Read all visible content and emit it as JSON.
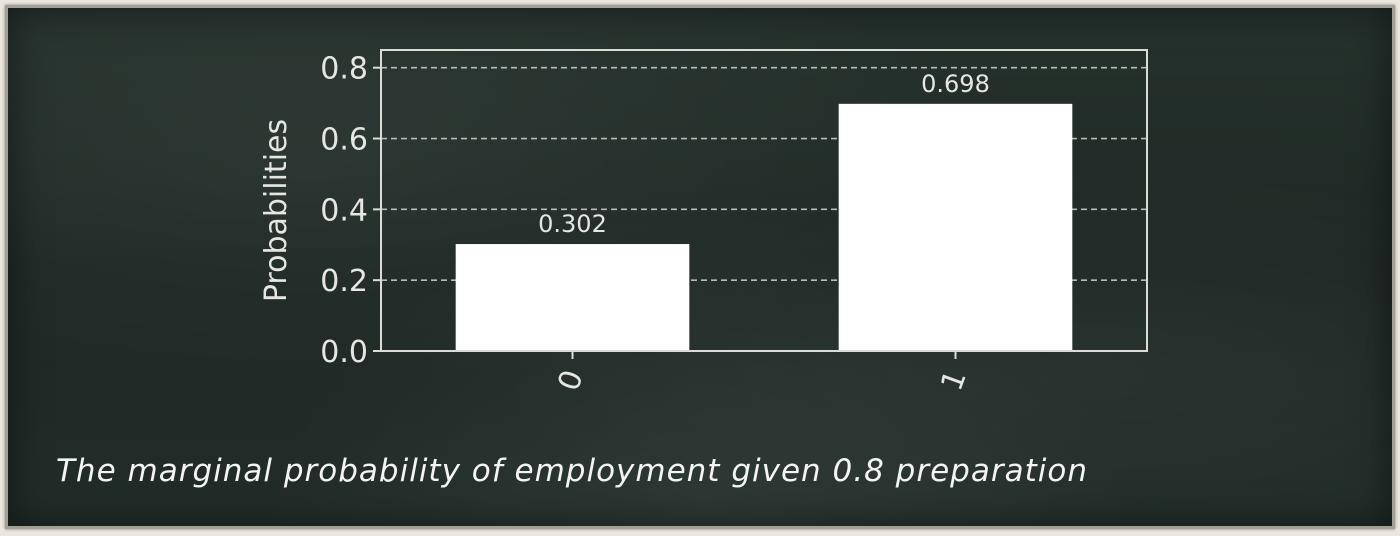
{
  "chart_data": {
    "type": "bar",
    "categories": [
      "0",
      "1"
    ],
    "values": [
      0.302,
      0.698
    ],
    "data_labels": [
      "0.302",
      "0.698"
    ],
    "ylabel": "Probabilities",
    "xlabel": "",
    "ylim": [
      0,
      0.85
    ],
    "yticks": [
      0.0,
      0.2,
      0.4,
      0.6,
      0.8
    ],
    "ytick_labels": [
      "0.0",
      "0.2",
      "0.4",
      "0.6",
      "0.8"
    ],
    "grid": "horizontal dashed",
    "colors": {
      "bar": "#ffffff",
      "axis": "#dcdcd6",
      "text": "#e6e6e2",
      "grid": "#b8bcb6"
    }
  },
  "caption": "The marginal probability of employment given 0.8 preparation"
}
